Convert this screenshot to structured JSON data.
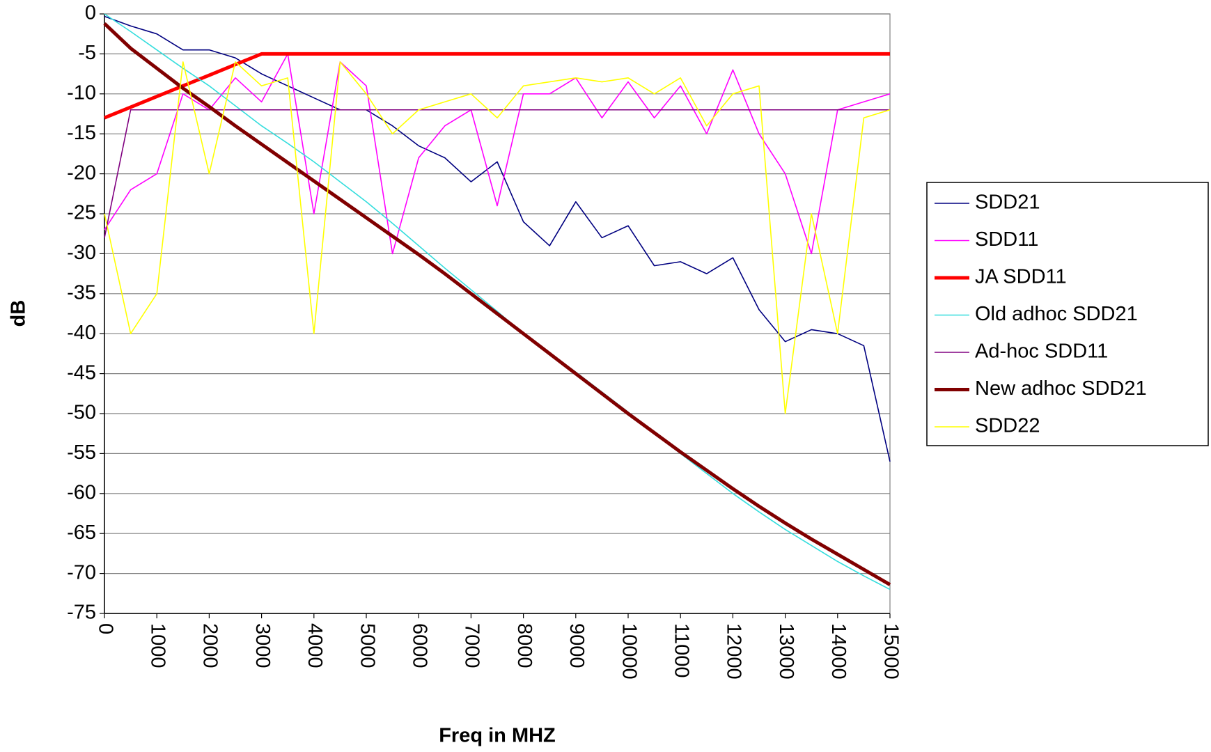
{
  "chart_data": {
    "type": "line",
    "x_label": "Freq in MHZ",
    "y_label": "dB",
    "x": [
      0,
      500,
      1000,
      1500,
      2000,
      2500,
      3000,
      3500,
      4000,
      4500,
      5000,
      5500,
      6000,
      6500,
      7000,
      7500,
      8000,
      8500,
      9000,
      9500,
      10000,
      10500,
      11000,
      11500,
      12000,
      12500,
      13000,
      13500,
      14000,
      14500,
      15000
    ],
    "series": [
      {
        "name": "SDD21",
        "color": "#000080",
        "width": 1.6,
        "values": [
          -0.3,
          -1.5,
          -2.5,
          -4.5,
          -4.5,
          -5.5,
          -7.5,
          -9,
          -10.5,
          -12,
          -12,
          -14,
          -16.5,
          -18,
          -21,
          -18.5,
          -26,
          -29,
          -23.5,
          -28,
          -26.5,
          -31.5,
          -31,
          -32.5,
          -30.5,
          -37,
          -41,
          -39.5,
          -40,
          -41.5,
          -56
        ]
      },
      {
        "name": "SDD11",
        "color": "#ff00ff",
        "width": 1.6,
        "values": [
          -27,
          -22,
          -20,
          -10,
          -12,
          -8,
          -11,
          -5,
          -25,
          -6,
          -9,
          -30,
          -18,
          -14,
          -12,
          -24,
          -10,
          -10,
          -8,
          -13,
          -8.5,
          -13,
          -9,
          -15,
          -7,
          -15,
          -20,
          -30,
          -12,
          -11,
          -10
        ]
      },
      {
        "name": "JA SDD11",
        "color": "#ff0000",
        "width": 5,
        "values": [
          -13,
          -11.67,
          -10.33,
          -9,
          -7.67,
          -6.33,
          -5,
          -5,
          -5,
          -5,
          -5,
          -5,
          -5,
          -5,
          -5,
          -5,
          -5,
          -5,
          -5,
          -5,
          -5,
          -5,
          -5,
          -5,
          -5,
          -5,
          -5,
          -5,
          -5,
          -5,
          -5
        ]
      },
      {
        "name": "Old adhoc SDD21",
        "color": "#33dddd",
        "width": 1.6,
        "values": [
          0,
          -2.2,
          -4.5,
          -6.8,
          -9,
          -11.5,
          -14,
          -16.2,
          -18.5,
          -21,
          -23.5,
          -26.2,
          -29,
          -31.8,
          -34.5,
          -37.2,
          -40,
          -42.4,
          -44.8,
          -47.3,
          -49.8,
          -52.4,
          -55,
          -57.5,
          -60,
          -62.3,
          -64.5,
          -66.5,
          -68.5,
          -70.3,
          -72
        ]
      },
      {
        "name": "Ad-hoc SDD11",
        "color": "#800080",
        "width": 1.6,
        "values": [
          -28,
          -12,
          -12,
          -12,
          -12,
          -12,
          -12,
          -12,
          -12,
          -12,
          -12,
          -12,
          -12,
          -12,
          -12,
          -12,
          -12,
          -12,
          -12,
          -12,
          -12,
          -12,
          -12,
          -12,
          -12,
          -12,
          -12,
          -12,
          -12,
          -12,
          -12
        ]
      },
      {
        "name": "New adhoc SDD21",
        "color": "#800000",
        "width": 5,
        "values": [
          -1.2,
          -4.3,
          -6.8,
          -9.3,
          -11.6,
          -14,
          -16.3,
          -18.6,
          -20.9,
          -23.2,
          -25.5,
          -27.8,
          -30.1,
          -32.5,
          -35,
          -37.5,
          -40,
          -42.5,
          -45,
          -47.5,
          -50,
          -52.4,
          -54.8,
          -57.1,
          -59.4,
          -61.6,
          -63.7,
          -65.7,
          -67.6,
          -69.5,
          -71.4
        ]
      },
      {
        "name": "SDD22",
        "color": "#ffff00",
        "width": 1.6,
        "values": [
          -25,
          -40,
          -35,
          -6,
          -20,
          -6,
          -9,
          -8,
          -40,
          -6,
          -10,
          -15,
          -12,
          -11,
          -10,
          -13,
          -9,
          -8.5,
          -8,
          -8.5,
          -8,
          -10,
          -8,
          -14,
          -10,
          -9,
          -50,
          -25,
          -40,
          -13,
          -12
        ]
      }
    ],
    "xlim": [
      0,
      15000
    ],
    "xticks": [
      0,
      1000,
      2000,
      3000,
      4000,
      5000,
      6000,
      7000,
      8000,
      9000,
      10000,
      11000,
      12000,
      13000,
      14000,
      15000
    ],
    "ylim": [
      -75,
      0
    ],
    "yticks": [
      0,
      -5,
      -10,
      -15,
      -20,
      -25,
      -30,
      -35,
      -40,
      -45,
      -50,
      -55,
      -60,
      -65,
      -70,
      -75
    ],
    "grid": true,
    "legend": "right"
  }
}
